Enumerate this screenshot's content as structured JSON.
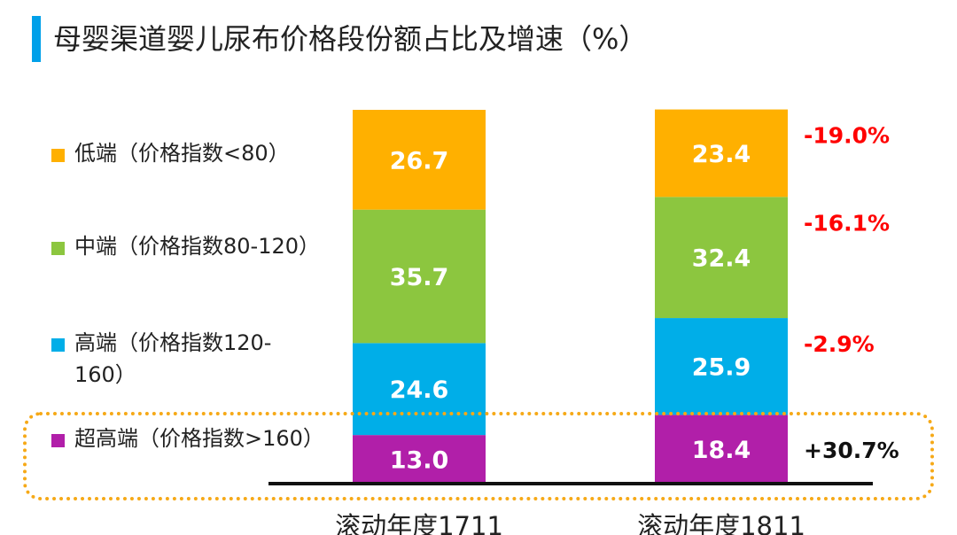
{
  "title": "母婴渠道婴儿尿布价格段份额占比及增速（%）",
  "chart_data": {
    "type": "bar",
    "stacked": true,
    "categories": [
      "滚动年度1711",
      "滚动年度1811"
    ],
    "series": [
      {
        "name": "超高端(价格指数>160)",
        "label": "超高端（价格指数>160）",
        "color": "#b11fa9",
        "values": [
          13.0,
          18.4
        ],
        "growth": "+30.7%",
        "growth_color": "#111111"
      },
      {
        "name": "高端(价格指数120-160)",
        "label": "高端（价格指数120-160）",
        "color": "#00aee8",
        "values": [
          24.6,
          25.9
        ],
        "growth": "-2.9%",
        "growth_color": "#ff0000"
      },
      {
        "name": "中端(价格指数80-120)",
        "label": "中端（价格指数80-120）",
        "color": "#8cc63f",
        "values": [
          35.7,
          32.4
        ],
        "growth": "-16.1%",
        "growth_color": "#ff0000"
      },
      {
        "name": "低端(价格指数<80)",
        "label": "低端（价格指数<80）",
        "color": "#ffb000",
        "values": [
          26.7,
          23.4
        ],
        "growth": "-19.0%",
        "growth_color": "#ff0000"
      }
    ],
    "ylim": [
      0,
      100
    ],
    "legend_position": "left",
    "highlighted_series": "超高端(价格指数>160)"
  }
}
